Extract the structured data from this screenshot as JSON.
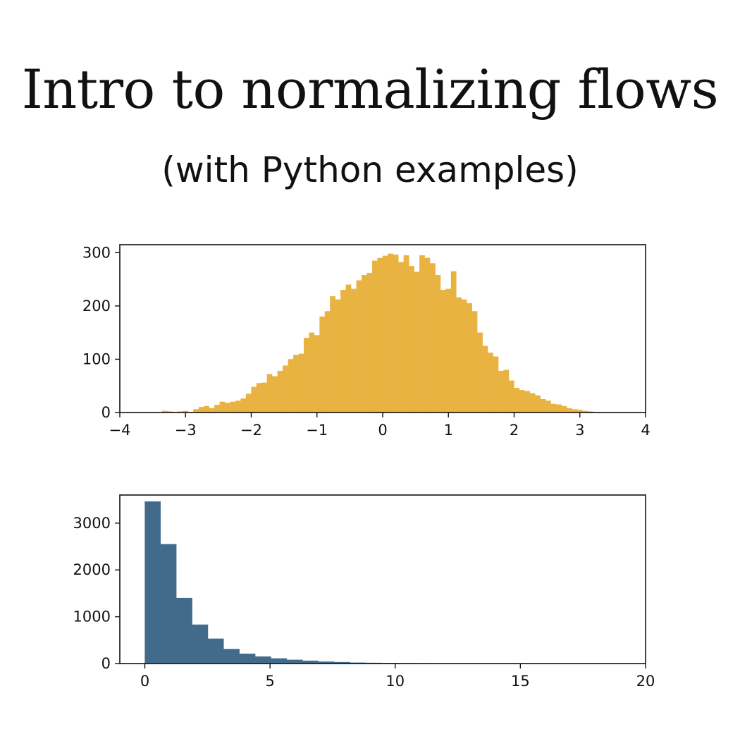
{
  "header": {
    "title": "Intro to normalizing flows",
    "subtitle": "(with Python examples)"
  },
  "colors": {
    "top_fill": "#e8b341",
    "bottom_fill": "#426a8a",
    "axis": "#111111"
  },
  "chart_data": [
    {
      "type": "bar",
      "xlim": [
        -4,
        4
      ],
      "ylim": [
        0,
        315
      ],
      "xticks": [
        -4,
        -3,
        -2,
        -1,
        0,
        1,
        2,
        3,
        4
      ],
      "xtick_labels": [
        "−4",
        "−3",
        "−2",
        "−1",
        "0",
        "1",
        "2",
        "3",
        "4"
      ],
      "yticks": [
        0,
        100,
        200,
        300
      ],
      "ytick_labels": [
        "0",
        "100",
        "200",
        "300"
      ],
      "bin_width": 0.08,
      "bin_starts": [
        -3.36,
        -3.28,
        -3.2,
        -3.12,
        -3.04,
        -2.96,
        -2.88,
        -2.8,
        -2.72,
        -2.64,
        -2.56,
        -2.48,
        -2.4,
        -2.32,
        -2.24,
        -2.16,
        -2.08,
        -2.0,
        -1.92,
        -1.84,
        -1.76,
        -1.68,
        -1.6,
        -1.52,
        -1.44,
        -1.36,
        -1.28,
        -1.2,
        -1.12,
        -1.04,
        -0.96,
        -0.88,
        -0.8,
        -0.72,
        -0.64,
        -0.56,
        -0.48,
        -0.4,
        -0.32,
        -0.24,
        -0.16,
        -0.08,
        0.0,
        0.08,
        0.16,
        0.24,
        0.32,
        0.4,
        0.48,
        0.56,
        0.64,
        0.72,
        0.8,
        0.88,
        0.96,
        1.04,
        1.12,
        1.2,
        1.28,
        1.36,
        1.44,
        1.52,
        1.6,
        1.68,
        1.76,
        1.84,
        1.92,
        2.0,
        2.08,
        2.16,
        2.24,
        2.32,
        2.4,
        2.48,
        2.56,
        2.64,
        2.72,
        2.8,
        2.88,
        2.96,
        3.04,
        3.12,
        3.2,
        3.28
      ],
      "values": [
        3,
        2,
        1,
        2,
        3,
        1,
        6,
        10,
        12,
        8,
        14,
        20,
        18,
        20,
        22,
        26,
        35,
        48,
        55,
        56,
        72,
        68,
        78,
        88,
        100,
        108,
        110,
        140,
        150,
        145,
        180,
        190,
        218,
        212,
        230,
        240,
        232,
        248,
        258,
        262,
        285,
        290,
        294,
        298,
        296,
        282,
        295,
        275,
        264,
        295,
        290,
        280,
        258,
        230,
        232,
        265,
        216,
        212,
        205,
        190,
        150,
        125,
        112,
        105,
        78,
        80,
        60,
        46,
        42,
        40,
        36,
        32,
        25,
        22,
        16,
        15,
        12,
        8,
        6,
        5,
        3,
        2,
        1,
        1
      ]
    },
    {
      "type": "bar",
      "xlim": [
        -1,
        20
      ],
      "ylim": [
        0,
        3600
      ],
      "xticks": [
        0,
        5,
        10,
        15,
        20
      ],
      "xtick_labels": [
        "0",
        "5",
        "10",
        "15",
        "20"
      ],
      "yticks": [
        0,
        1000,
        2000,
        3000
      ],
      "ytick_labels": [
        "0",
        "1000",
        "2000",
        "3000"
      ],
      "bin_width": 0.63,
      "bin_starts": [
        0.0,
        0.63,
        1.26,
        1.89,
        2.52,
        3.15,
        3.78,
        4.41,
        5.04,
        5.67,
        6.3,
        6.93,
        7.56,
        8.19,
        8.82,
        9.45,
        10.08,
        10.71,
        11.34,
        11.97,
        12.6,
        13.23,
        13.86,
        14.49,
        15.12,
        15.75,
        16.38,
        17.01
      ],
      "values": [
        3460,
        2550,
        1400,
        830,
        530,
        310,
        210,
        150,
        110,
        80,
        60,
        40,
        30,
        20,
        15,
        10,
        8,
        6,
        5,
        4,
        3,
        3,
        2,
        2,
        1,
        1,
        1,
        1
      ]
    }
  ]
}
